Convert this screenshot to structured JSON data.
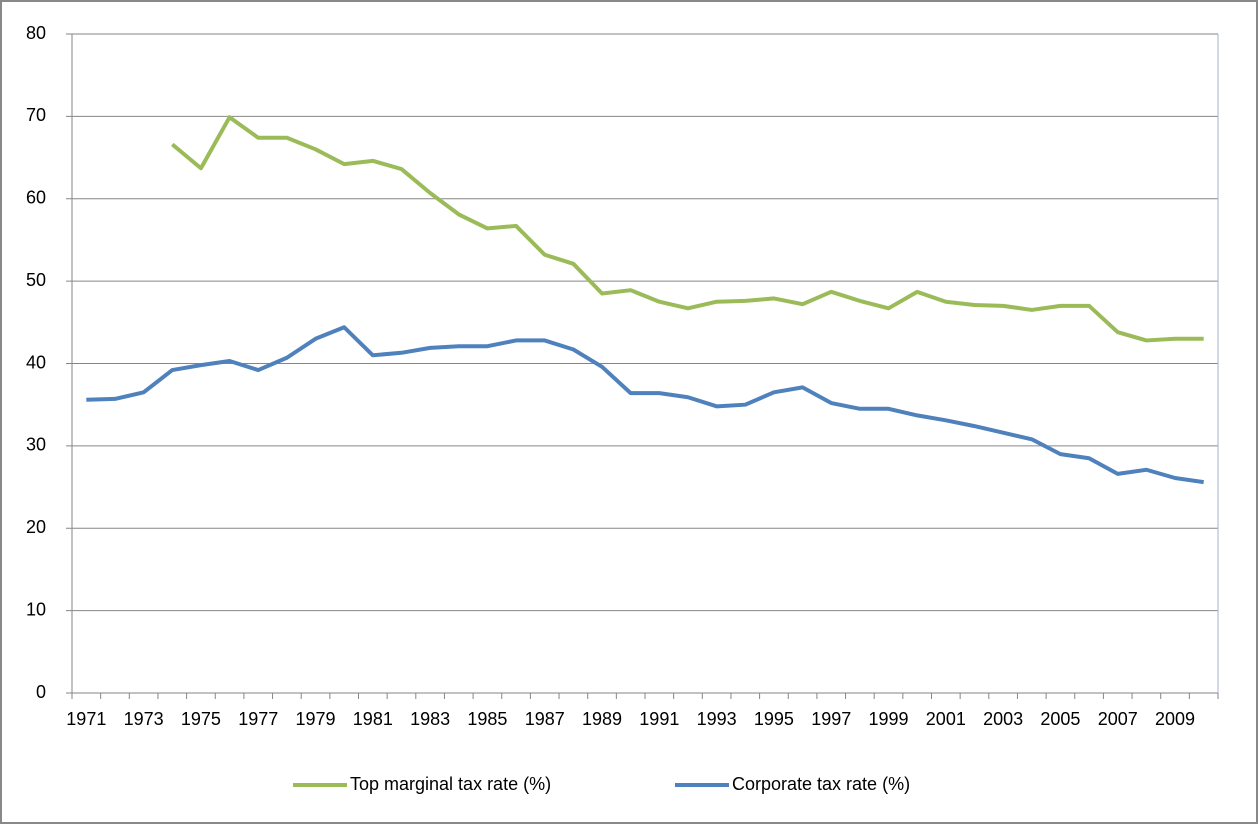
{
  "chart_data": {
    "type": "line",
    "categories": [
      "1971",
      null,
      "1973",
      null,
      "1975",
      null,
      "1977",
      null,
      "1979",
      null,
      "1981",
      null,
      "1983",
      null,
      "1985",
      null,
      "1987",
      null,
      "1989",
      null,
      "1991",
      null,
      "1993",
      null,
      "1995",
      null,
      "1997",
      null,
      "1999",
      null,
      "2001",
      null,
      "2003",
      null,
      "2005",
      null,
      "2007",
      null,
      "2009",
      null
    ],
    "series": [
      {
        "name": "Top marginal tax rate (%)",
        "color": "#9bbb59",
        "values": [
          null,
          null,
          null,
          66.6,
          63.7,
          69.9,
          67.4,
          67.4,
          66.0,
          64.2,
          64.6,
          63.6,
          60.7,
          58.1,
          56.4,
          56.7,
          53.2,
          52.1,
          48.5,
          48.9,
          47.5,
          46.7,
          47.5,
          47.6,
          47.9,
          47.2,
          48.7,
          47.6,
          46.7,
          48.7,
          47.5,
          47.1,
          47.0,
          46.5,
          47.0,
          47.0,
          43.8,
          42.8,
          43.0,
          43.0
        ]
      },
      {
        "name": "Corporate  tax rate (%)",
        "color": "#4f81bd",
        "values": [
          35.6,
          35.7,
          36.5,
          39.2,
          39.8,
          40.3,
          39.2,
          40.7,
          43.0,
          44.4,
          41.0,
          41.3,
          41.9,
          42.1,
          42.1,
          42.8,
          42.8,
          41.7,
          39.6,
          36.4,
          36.4,
          35.9,
          34.8,
          35.0,
          36.5,
          37.1,
          35.2,
          34.5,
          34.5,
          33.7,
          33.1,
          32.4,
          31.6,
          30.8,
          29.0,
          28.5,
          26.6,
          27.1,
          26.1,
          25.6
        ]
      }
    ],
    "ylim": [
      0,
      80
    ],
    "yticks": [
      0,
      10,
      20,
      30,
      40,
      50,
      60,
      70,
      80
    ],
    "grid": true,
    "legend": "bottom"
  }
}
